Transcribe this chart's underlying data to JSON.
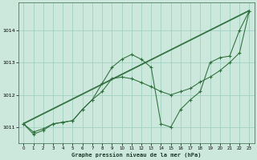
{
  "xlabel": "Graphe pression niveau de la mer (hPa)",
  "background_color": "#cce8dd",
  "grid_color": "#99ccbb",
  "line_color": "#2d6e3a",
  "xlim": [
    -0.5,
    23.5
  ],
  "ylim": [
    1010.5,
    1014.85
  ],
  "yticks": [
    1011,
    1012,
    1013,
    1014
  ],
  "xticks": [
    0,
    1,
    2,
    3,
    4,
    5,
    6,
    7,
    8,
    9,
    10,
    11,
    12,
    13,
    14,
    15,
    16,
    17,
    18,
    19,
    20,
    21,
    22,
    23
  ],
  "line1_x": [
    0,
    1,
    2,
    3,
    4,
    5,
    6,
    7,
    8,
    9,
    10,
    11,
    12,
    13,
    14,
    15,
    16,
    17,
    18,
    19,
    20,
    21,
    22,
    23
  ],
  "line1_y": [
    1011.1,
    1010.78,
    1010.9,
    1011.1,
    1011.15,
    1011.2,
    1011.55,
    1011.85,
    1012.35,
    1012.85,
    1013.1,
    1013.25,
    1013.1,
    1012.85,
    1011.1,
    1011.0,
    1011.55,
    1011.85,
    1012.1,
    1013.0,
    1013.15,
    1013.2,
    1014.0,
    1014.6
  ],
  "line2_x": [
    0,
    1,
    2,
    3,
    4,
    5,
    6,
    7,
    8,
    9,
    10,
    11,
    12,
    13,
    14,
    15,
    16,
    17,
    18,
    19,
    20,
    21,
    22,
    23
  ],
  "line2_y": [
    1011.1,
    1010.85,
    1010.95,
    1011.1,
    1011.15,
    1011.2,
    1011.55,
    1011.85,
    1012.1,
    1012.5,
    1012.55,
    1012.5,
    1012.38,
    1012.25,
    1012.1,
    1012.0,
    1012.1,
    1012.2,
    1012.4,
    1012.55,
    1012.75,
    1013.0,
    1013.3,
    1014.6
  ],
  "line3_x": [
    0,
    23
  ],
  "line3_y": [
    1011.1,
    1014.6
  ],
  "line4_x": [
    0,
    23
  ],
  "line4_y": [
    1011.1,
    1014.6
  ]
}
